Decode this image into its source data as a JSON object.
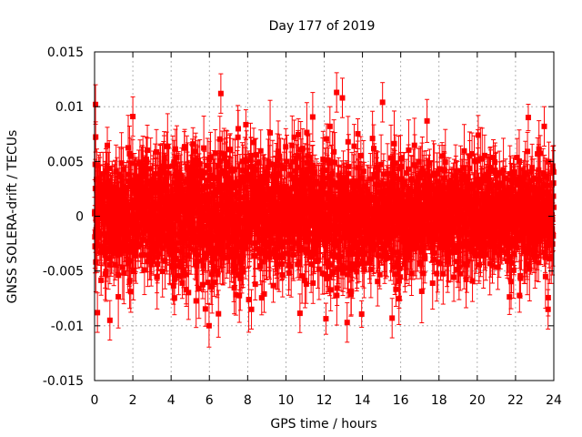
{
  "chart_data": {
    "type": "scatter",
    "title": "Day 177 of 2019",
    "xlabel": "GPS time / hours",
    "ylabel": "GNSS SOLERA-drift / TECUs",
    "xlim": [
      0,
      24
    ],
    "ylim": [
      -0.015,
      0.015
    ],
    "x_ticks": [
      0,
      2,
      4,
      6,
      8,
      10,
      12,
      14,
      16,
      18,
      20,
      22,
      24
    ],
    "x_tick_labels": [
      "0",
      "2",
      "4",
      "6",
      "8",
      "10",
      "12",
      "14",
      "16",
      "18",
      "20",
      "22",
      "24"
    ],
    "y_ticks": [
      -0.015,
      -0.01,
      -0.005,
      0,
      0.005,
      0.01,
      0.015
    ],
    "y_tick_labels": [
      "-0.015",
      "-0.01",
      "-0.005",
      "0",
      "0.005",
      "0.01",
      "0.015"
    ],
    "grid": true,
    "marker": "square",
    "error_bars": true,
    "series_color": "#ff0000",
    "grid_color": "#a0a0a0",
    "series": [
      {
        "name": "SOLERA-drift",
        "sampling_interval_hours": 0.0083333,
        "noise_sigma": 0.0028,
        "error_bar_half_range": [
          0.0012,
          0.003
        ],
        "notable_points": [
          {
            "x": 0.05,
            "y": 0.0102
          },
          {
            "x": 0.15,
            "y": -0.0088
          },
          {
            "x": 0.8,
            "y": -0.0095
          },
          {
            "x": 2.0,
            "y": 0.0091
          },
          {
            "x": 6.6,
            "y": 0.0112
          },
          {
            "x": 8.2,
            "y": -0.0085
          },
          {
            "x": 12.3,
            "y": 0.0082
          },
          {
            "x": 12.65,
            "y": 0.0113
          },
          {
            "x": 12.95,
            "y": 0.0108
          },
          {
            "x": 13.2,
            "y": -0.0097
          },
          {
            "x": 15.05,
            "y": 0.0104
          },
          {
            "x": 15.55,
            "y": -0.0093
          },
          {
            "x": 20.05,
            "y": 0.0074
          },
          {
            "x": 23.5,
            "y": 0.0082
          },
          {
            "x": 23.7,
            "y": -0.0085
          }
        ]
      }
    ]
  }
}
